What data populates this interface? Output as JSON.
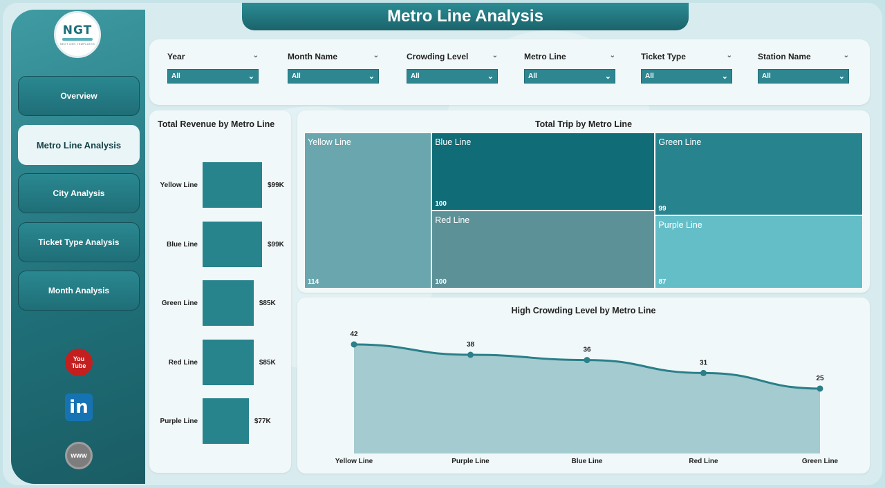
{
  "title": "Metro Line Analysis",
  "logo": {
    "text": "NGT",
    "subtitle": "NEXT GEN TEMPLATES"
  },
  "sidebar": {
    "items": [
      {
        "label": "Overview",
        "active": false
      },
      {
        "label": "Metro Line Analysis",
        "active": true
      },
      {
        "label": "City Analysis",
        "active": false
      },
      {
        "label": "Ticket Type Analysis",
        "active": false
      },
      {
        "label": "Month Analysis",
        "active": false
      }
    ],
    "social": {
      "youtube": {
        "line1": "You",
        "line2": "Tube"
      },
      "linkedin": "in",
      "website": "www"
    }
  },
  "filters": [
    {
      "label": "Year",
      "value": "All"
    },
    {
      "label": "Month Name",
      "value": "All"
    },
    {
      "label": "Crowding Level",
      "value": "All"
    },
    {
      "label": "Metro Line",
      "value": "All"
    },
    {
      "label": "Ticket Type",
      "value": "All"
    },
    {
      "label": "Station Name",
      "value": "All"
    }
  ],
  "revenue_panel": {
    "title": "Total Revenue by Metro Line"
  },
  "treemap_panel": {
    "title": "Total Trip by Metro Line"
  },
  "line_panel": {
    "title": "High Crowding Level by Metro Line"
  },
  "colors": {
    "accent": "#27838c",
    "title_bar": "#1f6e77",
    "tree_yellow": "#6aa6ad",
    "tree_blue": "#106c77",
    "tree_green": "#27848f",
    "tree_red": "#5c9198",
    "tree_purple": "#64bec8",
    "area_fill": "#a3cbd0",
    "line": "#2a7f88"
  },
  "chart_data": [
    {
      "type": "bar",
      "orientation": "horizontal",
      "title": "Total Revenue by Metro Line",
      "categories": [
        "Yellow Line",
        "Blue Line",
        "Green Line",
        "Red Line",
        "Purple Line"
      ],
      "values": [
        99000,
        99000,
        85000,
        85000,
        77000
      ],
      "value_labels": [
        "$99K",
        "$99K",
        "$85K",
        "$85K",
        "$77K"
      ]
    },
    {
      "type": "treemap",
      "title": "Total Trip by Metro Line",
      "categories": [
        "Yellow Line",
        "Blue Line",
        "Red Line",
        "Green Line",
        "Purple Line"
      ],
      "values": [
        114,
        100,
        100,
        99,
        87
      ]
    },
    {
      "type": "area",
      "title": "High Crowding Level by Metro Line",
      "categories": [
        "Yellow Line",
        "Purple Line",
        "Blue Line",
        "Red Line",
        "Green Line"
      ],
      "values": [
        42,
        38,
        36,
        31,
        25
      ],
      "ylim": [
        0,
        42
      ]
    }
  ]
}
